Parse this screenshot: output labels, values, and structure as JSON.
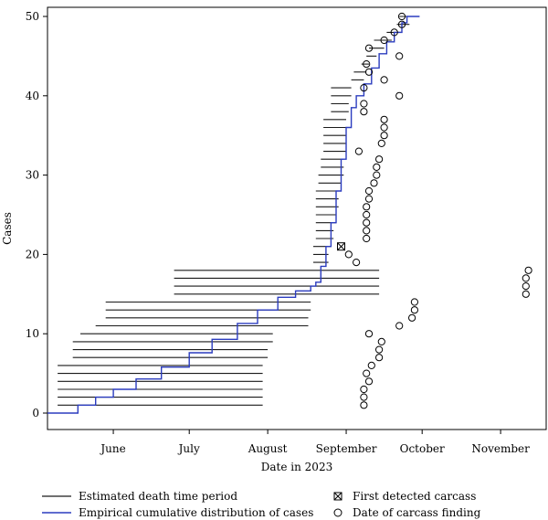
{
  "chart_data": {
    "type": "line",
    "title": "",
    "xlabel": "Date in 2023",
    "ylabel": "Cases",
    "xlim": [
      "2023-05-06",
      "2023-11-19"
    ],
    "ylim": [
      0,
      50
    ],
    "x_ticks": [
      {
        "label": "June",
        "date": "2023-06-01"
      },
      {
        "label": "July",
        "date": "2023-07-01"
      },
      {
        "label": "August",
        "date": "2023-08-01"
      },
      {
        "label": "September",
        "date": "2023-09-01"
      },
      {
        "label": "October",
        "date": "2023-10-01"
      },
      {
        "label": "November",
        "date": "2023-11-01"
      }
    ],
    "y_ticks": [
      0,
      10,
      20,
      30,
      40,
      50
    ],
    "grid": false,
    "legend_position": "bottom",
    "legend": [
      {
        "key": "periods",
        "label": "Estimated death time period"
      },
      {
        "key": "ecdf",
        "label": "Empirical cumulative distribution of cases"
      },
      {
        "key": "first",
        "label": "First detected carcass"
      },
      {
        "key": "finding",
        "label": "Date of carcass finding"
      }
    ],
    "colors": {
      "periods": "#1a1a1a",
      "ecdf": "#2b3cbf",
      "axis": "#000000"
    },
    "death_periods": [
      [
        1,
        "2023-05-10",
        "2023-07-30"
      ],
      [
        2,
        "2023-05-10",
        "2023-07-30"
      ],
      [
        3,
        "2023-05-10",
        "2023-07-30"
      ],
      [
        4,
        "2023-05-10",
        "2023-07-30"
      ],
      [
        5,
        "2023-05-10",
        "2023-07-30"
      ],
      [
        6,
        "2023-05-10",
        "2023-07-30"
      ],
      [
        7,
        "2023-05-16",
        "2023-08-01"
      ],
      [
        8,
        "2023-05-16",
        "2023-08-01"
      ],
      [
        9,
        "2023-05-16",
        "2023-08-03"
      ],
      [
        10,
        "2023-05-19",
        "2023-08-03"
      ],
      [
        11,
        "2023-05-25",
        "2023-08-17"
      ],
      [
        12,
        "2023-05-29",
        "2023-08-17"
      ],
      [
        13,
        "2023-05-29",
        "2023-08-18"
      ],
      [
        14,
        "2023-05-29",
        "2023-08-18"
      ],
      [
        15,
        "2023-06-25",
        "2023-09-14"
      ],
      [
        16,
        "2023-06-25",
        "2023-09-14"
      ],
      [
        17,
        "2023-06-25",
        "2023-09-14"
      ],
      [
        18,
        "2023-06-25",
        "2023-09-14"
      ],
      [
        19,
        "2023-08-19",
        "2023-08-25"
      ],
      [
        20,
        "2023-08-19",
        "2023-08-25"
      ],
      [
        21,
        "2023-08-19",
        "2023-08-26"
      ],
      [
        22,
        "2023-08-20",
        "2023-08-27"
      ],
      [
        23,
        "2023-08-20",
        "2023-08-27"
      ],
      [
        24,
        "2023-08-20",
        "2023-08-28"
      ],
      [
        25,
        "2023-08-20",
        "2023-08-28"
      ],
      [
        26,
        "2023-08-20",
        "2023-08-29"
      ],
      [
        27,
        "2023-08-20",
        "2023-08-29"
      ],
      [
        28,
        "2023-08-20",
        "2023-08-29"
      ],
      [
        29,
        "2023-08-21",
        "2023-08-30"
      ],
      [
        30,
        "2023-08-21",
        "2023-08-31"
      ],
      [
        31,
        "2023-08-22",
        "2023-08-31"
      ],
      [
        32,
        "2023-08-22",
        "2023-08-31"
      ],
      [
        33,
        "2023-08-23",
        "2023-09-01"
      ],
      [
        34,
        "2023-08-23",
        "2023-09-01"
      ],
      [
        35,
        "2023-08-23",
        "2023-09-01"
      ],
      [
        36,
        "2023-08-23",
        "2023-09-01"
      ],
      [
        37,
        "2023-08-23",
        "2023-09-01"
      ],
      [
        38,
        "2023-08-26",
        "2023-09-02"
      ],
      [
        39,
        "2023-08-26",
        "2023-09-02"
      ],
      [
        40,
        "2023-08-26",
        "2023-09-03"
      ],
      [
        41,
        "2023-08-26",
        "2023-09-03"
      ],
      [
        42,
        "2023-09-03",
        "2023-09-08"
      ],
      [
        43,
        "2023-09-04",
        "2023-09-09"
      ],
      [
        44,
        "2023-09-07",
        "2023-09-10"
      ],
      [
        45,
        "2023-09-09",
        "2023-09-13"
      ],
      [
        46,
        "2023-09-10",
        "2023-09-16"
      ],
      [
        47,
        "2023-09-12",
        "2023-09-19"
      ],
      [
        48,
        "2023-09-17",
        "2023-09-23"
      ],
      [
        49,
        "2023-09-21",
        "2023-09-26"
      ],
      [
        50,
        "2023-09-22",
        "2023-09-28"
      ]
    ],
    "ecdf": [
      [
        "2023-05-06",
        0
      ],
      [
        "2023-05-12",
        0
      ],
      [
        "2023-05-18",
        1.0
      ],
      [
        "2023-05-25",
        2.0
      ],
      [
        "2023-06-01",
        3.0
      ],
      [
        "2023-06-10",
        4.3
      ],
      [
        "2023-06-20",
        5.8
      ],
      [
        "2023-07-01",
        7.6
      ],
      [
        "2023-07-10",
        9.3
      ],
      [
        "2023-07-20",
        11.3
      ],
      [
        "2023-07-28",
        13.0
      ],
      [
        "2023-08-05",
        14.6
      ],
      [
        "2023-08-12",
        15.4
      ],
      [
        "2023-08-18",
        16.0
      ],
      [
        "2023-08-20",
        16.5
      ],
      [
        "2023-08-22",
        18.5
      ],
      [
        "2023-08-24",
        21.0
      ],
      [
        "2023-08-26",
        24.0
      ],
      [
        "2023-08-28",
        28.0
      ],
      [
        "2023-08-30",
        32.0
      ],
      [
        "2023-09-01",
        36.0
      ],
      [
        "2023-09-03",
        38.5
      ],
      [
        "2023-09-05",
        40.0
      ],
      [
        "2023-09-08",
        41.5
      ],
      [
        "2023-09-11",
        43.5
      ],
      [
        "2023-09-14",
        45.3
      ],
      [
        "2023-09-17",
        46.8
      ],
      [
        "2023-09-20",
        48.0
      ],
      [
        "2023-09-23",
        49.2
      ],
      [
        "2023-09-25",
        50
      ],
      [
        "2023-09-30",
        50
      ]
    ],
    "first_detected": {
      "date": "2023-08-30",
      "case": 21
    },
    "carcass_findings": [
      [
        "2023-09-08",
        1
      ],
      [
        "2023-09-08",
        2
      ],
      [
        "2023-09-08",
        3
      ],
      [
        "2023-09-10",
        4
      ],
      [
        "2023-09-09",
        5
      ],
      [
        "2023-09-11",
        6
      ],
      [
        "2023-09-14",
        7
      ],
      [
        "2023-09-14",
        8
      ],
      [
        "2023-09-15",
        9
      ],
      [
        "2023-09-10",
        10
      ],
      [
        "2023-09-22",
        11
      ],
      [
        "2023-09-27",
        12
      ],
      [
        "2023-09-28",
        13
      ],
      [
        "2023-09-28",
        14
      ],
      [
        "2023-11-11",
        15
      ],
      [
        "2023-11-11",
        16
      ],
      [
        "2023-11-11",
        17
      ],
      [
        "2023-11-12",
        18
      ],
      [
        "2023-09-05",
        19
      ],
      [
        "2023-09-02",
        20
      ],
      [
        "2023-09-09",
        22
      ],
      [
        "2023-09-09",
        23
      ],
      [
        "2023-09-09",
        24
      ],
      [
        "2023-09-09",
        25
      ],
      [
        "2023-09-09",
        26
      ],
      [
        "2023-09-10",
        27
      ],
      [
        "2023-09-10",
        28
      ],
      [
        "2023-09-12",
        29
      ],
      [
        "2023-09-13",
        30
      ],
      [
        "2023-09-13",
        31
      ],
      [
        "2023-09-14",
        32
      ],
      [
        "2023-09-06",
        33
      ],
      [
        "2023-09-15",
        34
      ],
      [
        "2023-09-16",
        35
      ],
      [
        "2023-09-16",
        36
      ],
      [
        "2023-09-16",
        37
      ],
      [
        "2023-09-08",
        38
      ],
      [
        "2023-09-08",
        39
      ],
      [
        "2023-09-22",
        40
      ],
      [
        "2023-09-08",
        41
      ],
      [
        "2023-09-16",
        42
      ],
      [
        "2023-09-10",
        43
      ],
      [
        "2023-09-09",
        44
      ],
      [
        "2023-09-22",
        45
      ],
      [
        "2023-09-10",
        46
      ],
      [
        "2023-09-16",
        47
      ],
      [
        "2023-09-20",
        48
      ],
      [
        "2023-09-23",
        49
      ],
      [
        "2023-09-23",
        50
      ]
    ]
  }
}
